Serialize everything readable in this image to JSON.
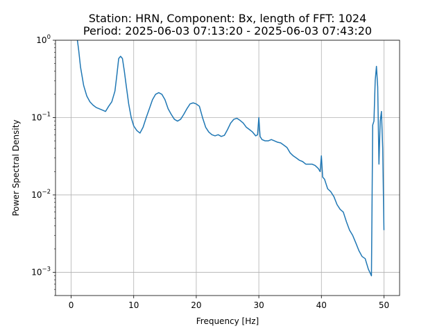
{
  "chart_data": {
    "type": "line",
    "title": "Station: HRN, Component: Bx, length of FFT: 1024",
    "subtitle": "Period: 2025-06-03 07:13:20 - 2025-06-03 07:43:20",
    "xlabel": "Frequency [Hz]",
    "ylabel": "Power Spectral Density",
    "xlim": [
      -2.5,
      52.5
    ],
    "ylim": [
      0.0005,
      1
    ],
    "yscale": "log",
    "grid": true,
    "x_ticks": [
      0,
      10,
      20,
      30,
      40,
      50
    ],
    "x_tick_labels": [
      "0",
      "10",
      "20",
      "30",
      "40",
      "50"
    ],
    "y_ticks": [
      0.001,
      0.01,
      0.1,
      1
    ],
    "series": [
      {
        "color": "#1f77b4",
        "x": [
          1.0,
          1.2,
          1.5,
          2.0,
          2.5,
          3.0,
          3.5,
          4.0,
          4.5,
          5.0,
          5.5,
          6.0,
          6.5,
          7.0,
          7.3,
          7.6,
          7.9,
          8.2,
          8.5,
          8.8,
          9.2,
          9.6,
          10.0,
          10.5,
          11.0,
          11.5,
          12.0,
          12.5,
          13.0,
          13.5,
          14.0,
          14.5,
          15.0,
          15.5,
          16.0,
          16.5,
          17.0,
          17.5,
          18.0,
          18.5,
          19.0,
          19.5,
          20.0,
          20.5,
          21.0,
          21.5,
          22.0,
          22.5,
          23.0,
          23.5,
          24.0,
          24.5,
          25.0,
          25.5,
          26.0,
          26.5,
          27.0,
          27.5,
          28.0,
          28.5,
          29.0,
          29.5,
          29.8,
          30.0,
          30.2,
          30.5,
          31.0,
          31.5,
          32.0,
          32.5,
          33.0,
          33.5,
          34.0,
          34.5,
          35.0,
          35.5,
          36.0,
          36.5,
          37.0,
          37.5,
          38.0,
          38.5,
          39.0,
          39.5,
          39.8,
          40.0,
          40.2,
          40.5,
          41.0,
          41.5,
          42.0,
          42.5,
          43.0,
          43.5,
          44.0,
          44.5,
          45.0,
          45.5,
          46.0,
          46.5,
          47.0,
          47.5,
          48.0,
          48.2,
          48.4,
          48.6,
          48.8,
          49.0,
          49.2,
          49.4,
          49.6,
          49.8,
          50.0
        ],
        "values": [
          1.0,
          0.75,
          0.45,
          0.26,
          0.19,
          0.16,
          0.145,
          0.135,
          0.13,
          0.125,
          0.12,
          0.14,
          0.16,
          0.22,
          0.35,
          0.58,
          0.62,
          0.58,
          0.4,
          0.26,
          0.15,
          0.1,
          0.078,
          0.068,
          0.063,
          0.075,
          0.1,
          0.13,
          0.17,
          0.2,
          0.21,
          0.2,
          0.17,
          0.13,
          0.11,
          0.095,
          0.09,
          0.095,
          0.11,
          0.13,
          0.15,
          0.155,
          0.15,
          0.14,
          0.1,
          0.075,
          0.065,
          0.06,
          0.058,
          0.06,
          0.057,
          0.059,
          0.07,
          0.085,
          0.095,
          0.098,
          0.092,
          0.085,
          0.075,
          0.07,
          0.065,
          0.058,
          0.06,
          0.1,
          0.057,
          0.052,
          0.05,
          0.05,
          0.052,
          0.05,
          0.048,
          0.047,
          0.044,
          0.041,
          0.035,
          0.032,
          0.03,
          0.028,
          0.027,
          0.025,
          0.025,
          0.025,
          0.024,
          0.022,
          0.02,
          0.032,
          0.017,
          0.016,
          0.012,
          0.011,
          0.0095,
          0.0075,
          0.0065,
          0.006,
          0.0045,
          0.0035,
          0.003,
          0.0024,
          0.0019,
          0.0016,
          0.0015,
          0.0011,
          0.0009,
          0.08,
          0.09,
          0.3,
          0.46,
          0.25,
          0.025,
          0.09,
          0.12,
          0.04,
          0.0035
        ]
      }
    ]
  }
}
